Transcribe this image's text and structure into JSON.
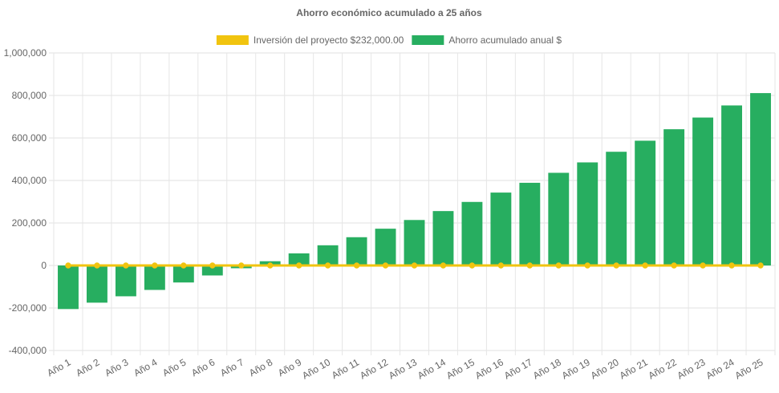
{
  "chart_data": {
    "type": "bar",
    "title": "Ahorro económico acumulado a 25 años",
    "categories": [
      "Año 1",
      "Año 2",
      "Año 3",
      "Año 4",
      "Año 5",
      "Año 6",
      "Año 7",
      "Año 8",
      "Año 9",
      "Año 10",
      "Año 11",
      "Año 12",
      "Año 13",
      "Año 14",
      "Año 15",
      "Año 16",
      "Año 17",
      "Año 18",
      "Año 19",
      "Año 20",
      "Año 21",
      "Año 22",
      "Año 23",
      "Año 24",
      "Año 25"
    ],
    "series": [
      {
        "name": "Inversión del proyecto $232,000.00",
        "kind": "line",
        "color": "#f1c40f",
        "values": [
          0,
          0,
          0,
          0,
          0,
          0,
          0,
          0,
          0,
          0,
          0,
          0,
          0,
          0,
          0,
          0,
          0,
          0,
          0,
          0,
          0,
          0,
          0,
          0,
          0
        ]
      },
      {
        "name": "Ahorro acumulado anual $",
        "kind": "bar",
        "color": "#27ae60",
        "values": [
          -205000,
          -175000,
          -145000,
          -115000,
          -80000,
          -47000,
          -13000,
          20000,
          57000,
          95000,
          133000,
          173000,
          214000,
          256000,
          299000,
          343000,
          389000,
          436000,
          485000,
          535000,
          587000,
          641000,
          696000,
          753000,
          811000
        ]
      }
    ],
    "yticks": [
      "1,000,000",
      "800,000",
      "600,000",
      "400,000",
      "200,000",
      "0",
      "-200,000",
      "-400,000"
    ],
    "ytick_values": [
      1000000,
      800000,
      600000,
      400000,
      200000,
      0,
      -200000,
      -400000
    ],
    "ylim": [
      -400000,
      1000000
    ],
    "grid": true,
    "legend": "top-center"
  }
}
